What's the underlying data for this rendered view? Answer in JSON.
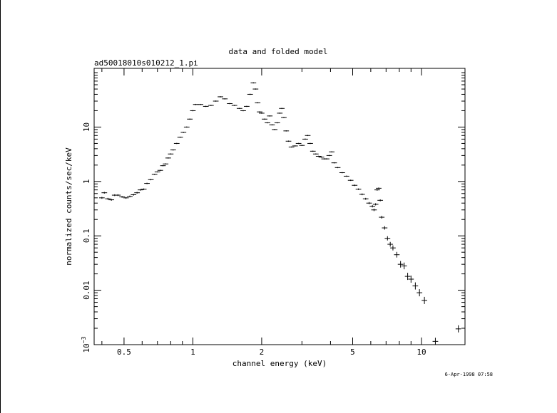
{
  "chart_data": {
    "type": "scatter",
    "title": "data and folded model",
    "subtitle": "ad50018010s010212_1.pi",
    "xlabel": "channel energy (keV)",
    "ylabel": "normalized counts/sec/keV",
    "xscale": "log",
    "yscale": "log",
    "xlim": [
      0.37,
      15.5
    ],
    "ylim": [
      0.001,
      120
    ],
    "xticks": [
      {
        "value": 0.5,
        "label": "0.5"
      },
      {
        "value": 1,
        "label": "1"
      },
      {
        "value": 2,
        "label": "2"
      },
      {
        "value": 5,
        "label": "5"
      },
      {
        "value": 10,
        "label": "10"
      }
    ],
    "yticks": [
      {
        "value": 0.001,
        "label": "10",
        "exponent": "−3"
      },
      {
        "value": 0.01,
        "label": "0.01"
      },
      {
        "value": 0.1,
        "label": "0.1"
      },
      {
        "value": 1,
        "label": "1"
      },
      {
        "value": 10,
        "label": "10"
      }
    ],
    "grid": false,
    "series": [
      {
        "points": [
          [
            0.4,
            0.5
          ],
          [
            0.41,
            0.62
          ],
          [
            0.425,
            0.48
          ],
          [
            0.44,
            0.46
          ],
          [
            0.455,
            0.56
          ],
          [
            0.47,
            0.56
          ],
          [
            0.49,
            0.52
          ],
          [
            0.51,
            0.5
          ],
          [
            0.53,
            0.53
          ],
          [
            0.55,
            0.57
          ],
          [
            0.57,
            0.62
          ],
          [
            0.59,
            0.7
          ],
          [
            0.61,
            0.72
          ],
          [
            0.63,
            0.92
          ],
          [
            0.655,
            1.08
          ],
          [
            0.68,
            1.35
          ],
          [
            0.7,
            1.5
          ],
          [
            0.72,
            1.6
          ],
          [
            0.74,
            1.95
          ],
          [
            0.76,
            2.1
          ],
          [
            0.78,
            2.7
          ],
          [
            0.8,
            3.2
          ],
          [
            0.82,
            3.8
          ],
          [
            0.85,
            5.0
          ],
          [
            0.88,
            6.5
          ],
          [
            0.91,
            8.0
          ],
          [
            0.94,
            10.0
          ],
          [
            0.97,
            14.0
          ],
          [
            1.0,
            20.0
          ],
          [
            1.03,
            26.0
          ],
          [
            1.08,
            26.0
          ],
          [
            1.14,
            24.0
          ],
          [
            1.2,
            25.0
          ],
          [
            1.26,
            30.0
          ],
          [
            1.32,
            36.0
          ],
          [
            1.38,
            33.0
          ],
          [
            1.45,
            27.0
          ],
          [
            1.52,
            25.0
          ],
          [
            1.6,
            22.0
          ],
          [
            1.66,
            20.0
          ],
          [
            1.72,
            24.0
          ],
          [
            1.78,
            40.0
          ],
          [
            1.84,
            65.0
          ],
          [
            1.88,
            50.0
          ],
          [
            1.92,
            28.0
          ],
          [
            1.96,
            19.0
          ],
          [
            2.0,
            18.0
          ],
          [
            2.06,
            14.0
          ],
          [
            2.12,
            12.0
          ],
          [
            2.17,
            16.0
          ],
          [
            2.22,
            11.0
          ],
          [
            2.28,
            9.0
          ],
          [
            2.34,
            12.0
          ],
          [
            2.4,
            18.0
          ],
          [
            2.45,
            22.0
          ],
          [
            2.5,
            15.0
          ],
          [
            2.56,
            8.5
          ],
          [
            2.62,
            5.5
          ],
          [
            2.7,
            4.3
          ],
          [
            2.8,
            4.5
          ],
          [
            2.9,
            5.0
          ],
          [
            3.0,
            4.6
          ],
          [
            3.1,
            6.0
          ],
          [
            3.18,
            7.0
          ],
          [
            3.26,
            5.0
          ],
          [
            3.35,
            3.6
          ],
          [
            3.45,
            3.2
          ],
          [
            3.55,
            2.9
          ],
          [
            3.65,
            2.8
          ],
          [
            3.75,
            2.6
          ],
          [
            3.85,
            2.6
          ],
          [
            3.95,
            3.0
          ],
          [
            4.05,
            3.5
          ],
          [
            4.15,
            2.2
          ],
          [
            4.3,
            1.8
          ],
          [
            4.5,
            1.45
          ],
          [
            4.7,
            1.25
          ],
          [
            4.9,
            1.05
          ],
          [
            5.1,
            0.85
          ],
          [
            5.3,
            0.72
          ],
          [
            5.5,
            0.58
          ],
          [
            5.7,
            0.48
          ],
          [
            5.9,
            0.4
          ],
          [
            6.1,
            0.35
          ],
          [
            6.2,
            0.3
          ],
          [
            6.3,
            0.38
          ],
          [
            6.4,
            0.7
          ],
          [
            6.5,
            0.75
          ],
          [
            6.6,
            0.45
          ],
          [
            6.7,
            0.22
          ],
          [
            6.9,
            0.14
          ],
          [
            7.1,
            0.09
          ],
          [
            7.3,
            0.07
          ],
          [
            7.5,
            0.06
          ],
          [
            7.8,
            0.045
          ],
          [
            8.1,
            0.03
          ],
          [
            8.4,
            0.028
          ],
          [
            8.7,
            0.018
          ],
          [
            9.0,
            0.016
          ],
          [
            9.4,
            0.012
          ],
          [
            9.8,
            0.009
          ],
          [
            10.3,
            0.0065
          ],
          [
            11.5,
            0.00115
          ],
          [
            14.5,
            0.00195
          ]
        ]
      }
    ]
  },
  "timestamp": "6-Apr-1998 07:58"
}
